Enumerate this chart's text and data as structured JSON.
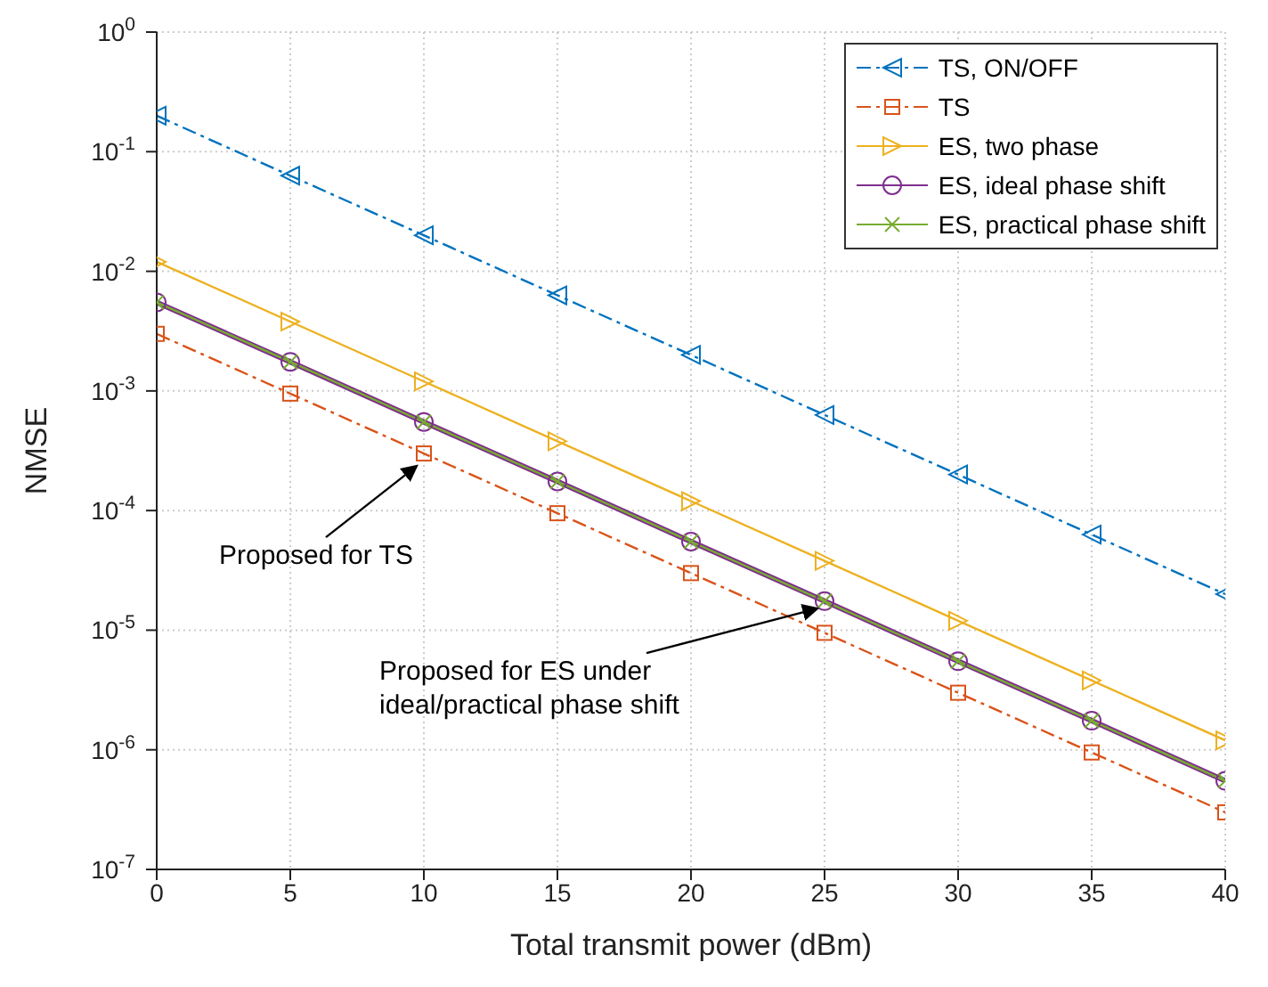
{
  "chart_data": {
    "type": "line",
    "xlabel": "Total transmit power (dBm)",
    "ylabel": "NMSE",
    "x": [
      0,
      5,
      10,
      15,
      20,
      25,
      30,
      35,
      40
    ],
    "xlim": [
      0,
      40
    ],
    "xticks": [
      0,
      5,
      10,
      15,
      20,
      25,
      30,
      35,
      40
    ],
    "log": "y",
    "ylim": [
      1e-07,
      1
    ],
    "yticks": [
      {
        "value": 1e-07,
        "label": "10$^{-7}$"
      },
      {
        "value": 1e-06,
        "label": "10$^{-6}$"
      },
      {
        "value": 1e-05,
        "label": "10$^{-5}$"
      },
      {
        "value": 0.0001,
        "label": "10$^{-4}$"
      },
      {
        "value": 0.001,
        "label": "10$^{-3}$"
      },
      {
        "value": 0.01,
        "label": "10$^{-2}$"
      },
      {
        "value": 0.1,
        "label": "10$^{-1}$"
      },
      {
        "value": 1,
        "label": "10$^{0}$"
      }
    ],
    "grid": true,
    "legend": "top right",
    "series": [
      {
        "name": "TS, ON/OFF",
        "color": "#0072bd",
        "marker": "triangle",
        "line_style": "dashed",
        "values": [
          0.2,
          0.063,
          0.02,
          0.0063,
          0.002,
          0.00063,
          0.0002,
          6.3e-05,
          2e-05
        ]
      },
      {
        "name": "TS",
        "color": "#d95319",
        "marker": "square",
        "line_style": "dashed",
        "values": [
          0.003,
          0.00095,
          0.0003,
          9.5e-05,
          3e-05,
          9.5e-06,
          3e-06,
          9.5e-07,
          3e-07
        ]
      },
      {
        "name": "ES, two phase",
        "color": "#edb120",
        "marker": "triangle",
        "line_style": "solid",
        "values": [
          0.012,
          0.0038,
          0.0012,
          0.00038,
          0.00012,
          3.8e-05,
          1.2e-05,
          3.8e-06,
          1.2e-06
        ]
      },
      {
        "name": "ES, ideal phase shift",
        "color": "#7e2f8e",
        "marker": "circle",
        "line_style": "solid",
        "values": [
          0.0055,
          0.00175,
          0.00055,
          0.000175,
          5.5e-05,
          1.75e-05,
          5.5e-06,
          1.75e-06,
          5.5e-07
        ]
      },
      {
        "name": "ES, practical phase shift",
        "color": "#77ac30",
        "marker": "cross",
        "line_style": "solid",
        "values": [
          0.0055,
          0.00175,
          0.00055,
          0.000175,
          5.5e-05,
          1.75e-05,
          5.5e-06,
          1.75e-06,
          5.5e-07
        ]
      }
    ],
    "annotations": [
      {
        "text": "Proposed for TS",
        "x": 10,
        "y": 0.00028
      },
      {
        "text": "Proposed for ES under\nideal/practical phase shift",
        "x": 25,
        "y": 1.8e-05
      }
    ]
  }
}
